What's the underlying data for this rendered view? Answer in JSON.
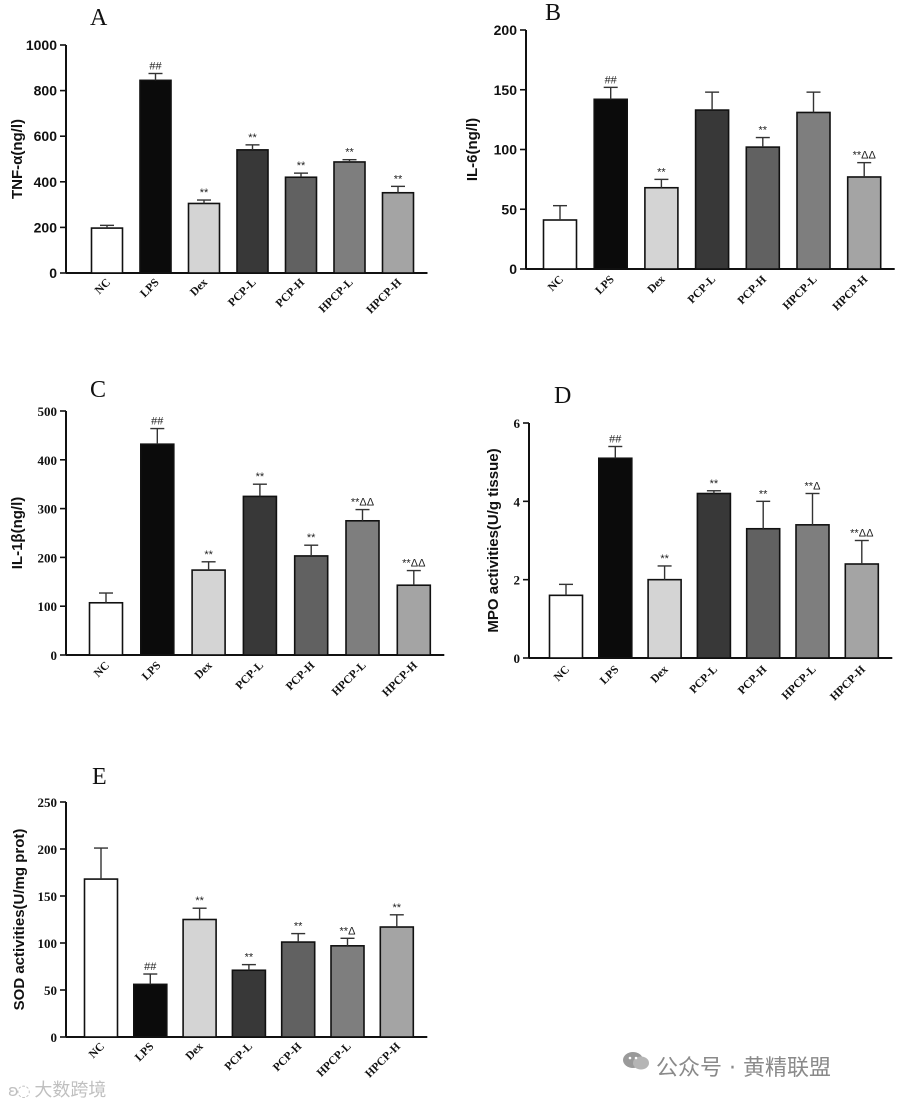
{
  "chart_data": [
    {
      "panel": "A",
      "type": "bar",
      "categories": [
        "NC",
        "LPS",
        "Dex",
        "PCP-L",
        "PCP-H",
        "HPCP-L",
        "HPCP-H"
      ],
      "values": [
        197,
        845,
        305,
        540,
        420,
        487,
        352
      ],
      "errors": [
        12,
        30,
        15,
        22,
        18,
        10,
        28
      ],
      "annotations": [
        "",
        "##",
        "**",
        "**",
        "**",
        "**",
        "**"
      ],
      "ylabel": "TNF-α(ng/l)",
      "ylim": [
        0,
        1000
      ],
      "yticks": [
        0,
        200,
        400,
        600,
        800,
        1000
      ],
      "colors": [
        "#ffffff",
        "#0b0b0b",
        "#d4d4d4",
        "#383838",
        "#616161",
        "#7e7e7e",
        "#a4a4a4"
      ]
    },
    {
      "panel": "B",
      "type": "bar",
      "categories": [
        "NC",
        "LPS",
        "Dex",
        "PCP-L",
        "PCP-H",
        "HPCP-L",
        "HPCP-H"
      ],
      "values": [
        41,
        142,
        68,
        133,
        102,
        131,
        77
      ],
      "errors": [
        12,
        10,
        7,
        15,
        8,
        17,
        12
      ],
      "annotations": [
        "",
        "##",
        "**",
        "",
        "**",
        "",
        "**ΔΔ"
      ],
      "ylabel": "IL-6(ng/l)",
      "ylim": [
        0,
        200
      ],
      "yticks": [
        0,
        50,
        100,
        150,
        200
      ],
      "colors": [
        "#ffffff",
        "#0b0b0b",
        "#d4d4d4",
        "#383838",
        "#616161",
        "#7e7e7e",
        "#a4a4a4"
      ]
    },
    {
      "panel": "C",
      "type": "bar",
      "categories": [
        "NC",
        "LPS",
        "Dex",
        "PCP-L",
        "PCP-H",
        "HPCP-L",
        "HPCP-H"
      ],
      "values": [
        107,
        432,
        174,
        325,
        203,
        275,
        143
      ],
      "errors": [
        20,
        32,
        17,
        25,
        22,
        23,
        30
      ],
      "annotations": [
        "",
        "##",
        "**",
        "**",
        "**",
        "**ΔΔ",
        "**ΔΔ"
      ],
      "ylabel": "IL-1β(ng/l)",
      "ylim": [
        0,
        500
      ],
      "yticks": [
        0,
        100,
        200,
        300,
        400,
        500
      ],
      "colors": [
        "#ffffff",
        "#0b0b0b",
        "#d4d4d4",
        "#383838",
        "#616161",
        "#7e7e7e",
        "#a4a4a4"
      ]
    },
    {
      "panel": "D",
      "type": "bar",
      "categories": [
        "NC",
        "LPS",
        "Dex",
        "PCP-L",
        "PCP-H",
        "HPCP-L",
        "HPCP-H"
      ],
      "values": [
        1.6,
        5.1,
        2.0,
        4.2,
        3.3,
        3.4,
        2.4
      ],
      "errors": [
        0.28,
        0.3,
        0.35,
        0.07,
        0.7,
        0.8,
        0.6
      ],
      "annotations": [
        "",
        "##",
        "**",
        "**",
        "**",
        "**Δ",
        "**ΔΔ"
      ],
      "ylabel": "MPO activities(U/g tissue)",
      "ylim": [
        0,
        6
      ],
      "yticks": [
        0,
        2,
        4,
        6
      ],
      "colors": [
        "#ffffff",
        "#0b0b0b",
        "#d4d4d4",
        "#383838",
        "#616161",
        "#7e7e7e",
        "#a4a4a4"
      ]
    },
    {
      "panel": "E",
      "type": "bar",
      "categories": [
        "NC",
        "LPS",
        "Dex",
        "PCP-L",
        "PCP-H",
        "HPCP-L",
        "HPCP-H"
      ],
      "values": [
        168,
        56,
        125,
        71,
        101,
        97,
        117
      ],
      "errors": [
        33,
        11,
        12,
        6,
        9,
        8,
        13
      ],
      "annotations": [
        "",
        "##",
        "**",
        "**",
        "**",
        "**Δ",
        "**"
      ],
      "ylabel": "SOD activities(U/mg prot)",
      "ylim": [
        0,
        250
      ],
      "yticks": [
        0,
        50,
        100,
        150,
        200,
        250
      ],
      "colors": [
        "#ffffff",
        "#0b0b0b",
        "#d4d4d4",
        "#383838",
        "#616161",
        "#7e7e7e",
        "#a4a4a4"
      ]
    }
  ],
  "watermarks": {
    "right": "公众号 · 黄精联盟",
    "left": "大数跨境"
  }
}
